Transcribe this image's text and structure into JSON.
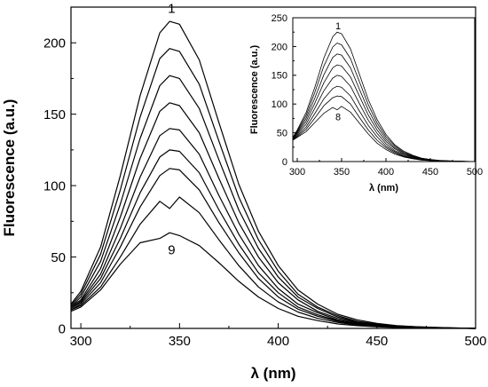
{
  "chart_data": [
    {
      "type": "line",
      "xlabel": "λ (nm)",
      "ylabel": "Fluorescence (a.u.)",
      "xlim": [
        295,
        500
      ],
      "ylim": [
        0,
        225
      ],
      "xticks": [
        300,
        350,
        400,
        450,
        500
      ],
      "yticks": [
        0,
        50,
        100,
        150,
        200
      ],
      "grid": false,
      "annotations": [
        {
          "text": "1",
          "x": 346,
          "y": 221
        },
        {
          "text": "9",
          "x": 346,
          "y": 52
        }
      ],
      "x": [
        295,
        300,
        310,
        320,
        330,
        340,
        345,
        350,
        360,
        370,
        380,
        390,
        400,
        410,
        420,
        430,
        440,
        450,
        460,
        470,
        480,
        490,
        500
      ],
      "series": [
        {
          "values": [
            17,
            26,
            57,
            107,
            163,
            207,
            215,
            213,
            188,
            144,
            101,
            68,
            44,
            27,
            17,
            10,
            6,
            3.5,
            2,
            1.2,
            0.7,
            0.3,
            0
          ]
        },
        {
          "values": [
            16,
            24,
            52,
            97,
            148,
            189,
            196,
            194,
            171,
            131,
            92,
            62,
            40,
            24,
            15,
            9,
            5,
            3,
            1.8,
            1.1,
            0.6,
            0.3,
            0
          ]
        },
        {
          "values": [
            15,
            22,
            47,
            87,
            133,
            170,
            177,
            175,
            154,
            118,
            83,
            56,
            36,
            22,
            14,
            8,
            4.5,
            2.7,
            1.6,
            1,
            0.5,
            0.2,
            0
          ]
        },
        {
          "values": [
            15,
            20,
            42,
            78,
            119,
            152,
            158,
            156,
            137,
            105,
            74,
            50,
            32,
            20,
            12,
            7,
            4,
            2.4,
            1.4,
            0.9,
            0.5,
            0.2,
            0
          ]
        },
        {
          "values": [
            14,
            19,
            38,
            70,
            106,
            135,
            140,
            139,
            122,
            93,
            66,
            44,
            28,
            17,
            11,
            6,
            3.5,
            2.1,
            1.2,
            0.8,
            0.4,
            0.2,
            0
          ]
        },
        {
          "values": [
            14,
            18,
            35,
            63,
            95,
            120,
            125,
            124,
            109,
            83,
            59,
            39,
            25,
            15,
            9.5,
            5.5,
            3.2,
            1.9,
            1.1,
            0.7,
            0.4,
            0.2,
            0
          ]
        },
        {
          "values": [
            13,
            17,
            32,
            57,
            85,
            107,
            112,
            111,
            97,
            74,
            53,
            35,
            22,
            13.5,
            8.5,
            5,
            2.9,
            1.7,
            1,
            0.6,
            0.3,
            0.1,
            0
          ]
        },
        {
          "values": [
            13,
            16,
            29,
            50,
            73,
            89,
            84,
            92,
            81,
            62,
            44,
            29,
            18.5,
            11.5,
            7,
            4.2,
            2.4,
            1.4,
            0.8,
            0.5,
            0.3,
            0.1,
            0
          ]
        },
        {
          "values": [
            12,
            15,
            27,
            45,
            60,
            63,
            67,
            65,
            58,
            46,
            33,
            22,
            14,
            8.5,
            5.5,
            3.2,
            1.9,
            1.1,
            0.6,
            0.4,
            0.2,
            0.1,
            0
          ]
        }
      ]
    },
    {
      "type": "line",
      "xlabel": "λ (nm)",
      "ylabel": "Fluorescence (a.u.)",
      "xlim": [
        295,
        500
      ],
      "ylim": [
        0,
        250
      ],
      "xticks": [
        300,
        350,
        400,
        450,
        500
      ],
      "yticks": [
        0,
        50,
        100,
        150,
        200,
        250
      ],
      "grid": false,
      "legend": "inset-top-right",
      "annotations": [
        {
          "text": "1",
          "x": 346,
          "y": 230
        },
        {
          "text": "8",
          "x": 346,
          "y": 72
        }
      ],
      "x": [
        295,
        300,
        310,
        320,
        330,
        340,
        345,
        350,
        360,
        370,
        380,
        390,
        400,
        410,
        420,
        430,
        440,
        450,
        460,
        470,
        480,
        490,
        500
      ],
      "series": [
        {
          "values": [
            42,
            55,
            85,
            130,
            180,
            217,
            225,
            222,
            196,
            152,
            108,
            73,
            47,
            29,
            18,
            11,
            6,
            3.5,
            2,
            1.2,
            0.7,
            0.3,
            0
          ]
        },
        {
          "values": [
            41,
            53,
            80,
            121,
            166,
            199,
            206,
            203,
            179,
            139,
            99,
            67,
            43,
            27,
            16,
            10,
            5.5,
            3.2,
            1.8,
            1.1,
            0.6,
            0.3,
            0
          ]
        },
        {
          "values": [
            40,
            51,
            75,
            111,
            151,
            181,
            187,
            185,
            163,
            126,
            90,
            61,
            39,
            24,
            15,
            9,
            5,
            2.9,
            1.7,
            1,
            0.5,
            0.2,
            0
          ]
        },
        {
          "values": [
            40,
            49,
            70,
            102,
            137,
            163,
            168,
            166,
            147,
            114,
            81,
            55,
            35,
            22,
            13,
            8,
            4.5,
            2.6,
            1.5,
            0.9,
            0.5,
            0.2,
            0
          ]
        },
        {
          "values": [
            39,
            47,
            65,
            93,
            123,
            145,
            150,
            148,
            131,
            101,
            72,
            49,
            31,
            19,
            12,
            7,
            4,
            2.3,
            1.3,
            0.8,
            0.4,
            0.2,
            0
          ]
        },
        {
          "values": [
            38,
            45,
            60,
            84,
            109,
            127,
            131,
            129,
            114,
            88,
            63,
            43,
            27,
            17,
            10,
            6,
            3.5,
            2,
            1.2,
            0.7,
            0.4,
            0.2,
            0
          ]
        },
        {
          "values": [
            38,
            43,
            56,
            76,
            97,
            111,
            114,
            113,
            100,
            77,
            55,
            37,
            24,
            15,
            9,
            5.5,
            3.1,
            1.8,
            1,
            0.6,
            0.3,
            0.1,
            0
          ]
        },
        {
          "values": [
            37,
            42,
            52,
            68,
            84,
            94,
            90,
            96,
            86,
            67,
            48,
            32,
            21,
            13,
            8,
            4.8,
            2.7,
            1.6,
            0.9,
            0.5,
            0.3,
            0.1,
            0
          ]
        }
      ]
    }
  ]
}
